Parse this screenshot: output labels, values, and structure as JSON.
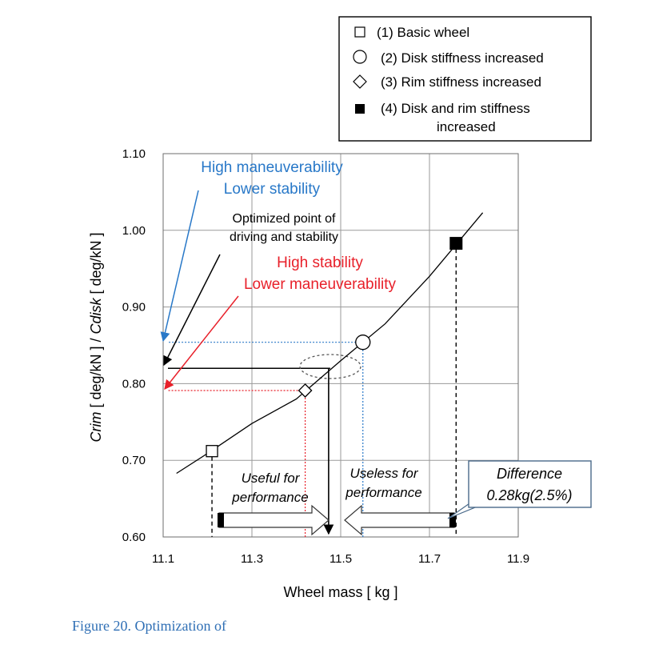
{
  "chart_data": {
    "type": "scatter",
    "xlabel": "Wheel mass  [ kg ]",
    "ylabel_parts": [
      "Crim",
      " [ deg/kN ] / ",
      "Cdisk",
      " [ deg/kN ]"
    ],
    "xlim": [
      11.1,
      11.9
    ],
    "ylim": [
      0.6,
      1.1
    ],
    "x_ticks": [
      "11.1",
      "11.3",
      "11.5",
      "11.7",
      "11.9"
    ],
    "y_ticks": [
      "0.60",
      "0.70",
      "0.80",
      "0.90",
      "1.00",
      "1.10"
    ],
    "grid": true,
    "points": [
      {
        "label": "(1) Basic wheel",
        "marker": "square-open",
        "x": 11.21,
        "y": 0.712
      },
      {
        "label": "(3) Rim stiffness increased",
        "marker": "diamond-open",
        "x": 11.42,
        "y": 0.791
      },
      {
        "label": "(2) Disk stiffness increased",
        "marker": "circle-open",
        "x": 11.55,
        "y": 0.854
      },
      {
        "label": "(4) Disk and rim stiffness increased",
        "marker": "square-filled",
        "x": 11.76,
        "y": 0.983
      }
    ],
    "fit_curve": {
      "x": [
        11.13,
        11.2,
        11.3,
        11.4,
        11.5,
        11.6,
        11.7,
        11.82
      ],
      "y": [
        0.683,
        0.709,
        0.748,
        0.78,
        0.83,
        0.878,
        0.94,
        1.023
      ]
    },
    "legend": {
      "placement": "top-right",
      "entries": [
        "(1) Basic wheel",
        "(2) Disk stiffness increased",
        "(3) Rim stiffness increased",
        "(4) Disk and rim stiffness increased"
      ]
    },
    "annotations": {
      "blue": [
        "High maneuverability",
        "Lower stability"
      ],
      "black": [
        "Optimized point of",
        "driving and stability"
      ],
      "red": [
        "High stability",
        "Lower maneuverability"
      ],
      "useful": [
        "Useful for",
        "performance"
      ],
      "useless": [
        "Useless for",
        "performance"
      ],
      "difference": [
        "Difference",
        "0.28kg(2.5%)"
      ]
    },
    "optimized_point": {
      "x": 11.48,
      "y": 0.82
    },
    "colors": {
      "blue": "#2878c8",
      "red": "#e8202a",
      "black": "#000000",
      "grid": "#9a9a9a"
    }
  },
  "caption": "Figure 20. Optimization of"
}
